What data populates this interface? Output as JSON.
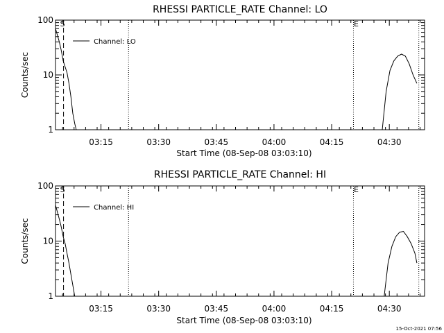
{
  "chart_data": [
    {
      "type": "line",
      "title": "RHESSI PARTICLE_RATE Channel: LO",
      "xlabel": "Start Time (08-Sep-08 03:03:10)",
      "ylabel": "Counts/sec",
      "yscale": "log",
      "ylim": [
        1,
        100
      ],
      "xlim_minutes": [
        0,
        96
      ],
      "ytick_labels": [
        "1",
        "10",
        "100"
      ],
      "xtick_labels": [
        "03:15",
        "03:30",
        "03:45",
        "04:00",
        "04:15",
        "04:30"
      ],
      "markers": {
        "S": 2,
        "E": 77.5
      },
      "vlines_dashed": [
        2
      ],
      "vlines_dotted": [
        19,
        77.5,
        94.5
      ],
      "legend": "Channel: LO",
      "series": [
        {
          "name": "Channel: LO",
          "segments": [
            [
              [
                0,
                70
              ],
              [
                1,
                40
              ],
              [
                1.5,
                28
              ],
              [
                2,
                18
              ],
              [
                2.5,
                14
              ],
              [
                3,
                11
              ],
              [
                3.5,
                7
              ],
              [
                4,
                4
              ],
              [
                4.5,
                2
              ],
              [
                5,
                1.3
              ],
              [
                5.4,
                1
              ]
            ],
            [
              [
                85,
                1
              ],
              [
                86,
                5
              ],
              [
                87,
                12
              ],
              [
                88,
                18
              ],
              [
                89,
                22
              ],
              [
                90,
                24
              ],
              [
                91,
                22
              ],
              [
                92,
                16
              ],
              [
                93,
                10
              ],
              [
                94,
                7
              ]
            ]
          ]
        }
      ]
    },
    {
      "type": "line",
      "title": "RHESSI PARTICLE_RATE Channel: HI",
      "xlabel": "Start Time (08-Sep-08 03:03:10)",
      "ylabel": "Counts/sec",
      "yscale": "log",
      "ylim": [
        1,
        100
      ],
      "xlim_minutes": [
        0,
        96
      ],
      "ytick_labels": [
        "1",
        "10",
        "100"
      ],
      "xtick_labels": [
        "03:15",
        "03:30",
        "03:45",
        "04:00",
        "04:15",
        "04:30"
      ],
      "markers": {
        "S": 2,
        "E": 77.5
      },
      "vlines_dashed": [
        2
      ],
      "vlines_dotted": [
        19,
        77.5,
        94.5
      ],
      "legend": "Channel: HI",
      "series": [
        {
          "name": "Channel: HI",
          "segments": [
            [
              [
                0,
                45
              ],
              [
                1,
                25
              ],
              [
                1.5,
                18
              ],
              [
                2,
                12
              ],
              [
                2.5,
                9
              ],
              [
                3,
                6
              ],
              [
                3.5,
                4
              ],
              [
                4,
                2.5
              ],
              [
                4.5,
                1.6
              ],
              [
                5,
                1
              ]
            ],
            [
              [
                85.5,
                1
              ],
              [
                86.5,
                4
              ],
              [
                87.5,
                8
              ],
              [
                88.5,
                12
              ],
              [
                89.5,
                14.5
              ],
              [
                90.5,
                15
              ],
              [
                91.5,
                12
              ],
              [
                92.5,
                9
              ],
              [
                93.5,
                6
              ],
              [
                94,
                4
              ]
            ]
          ]
        }
      ]
    }
  ],
  "timestamp": "15-Oct-2021 07:56"
}
